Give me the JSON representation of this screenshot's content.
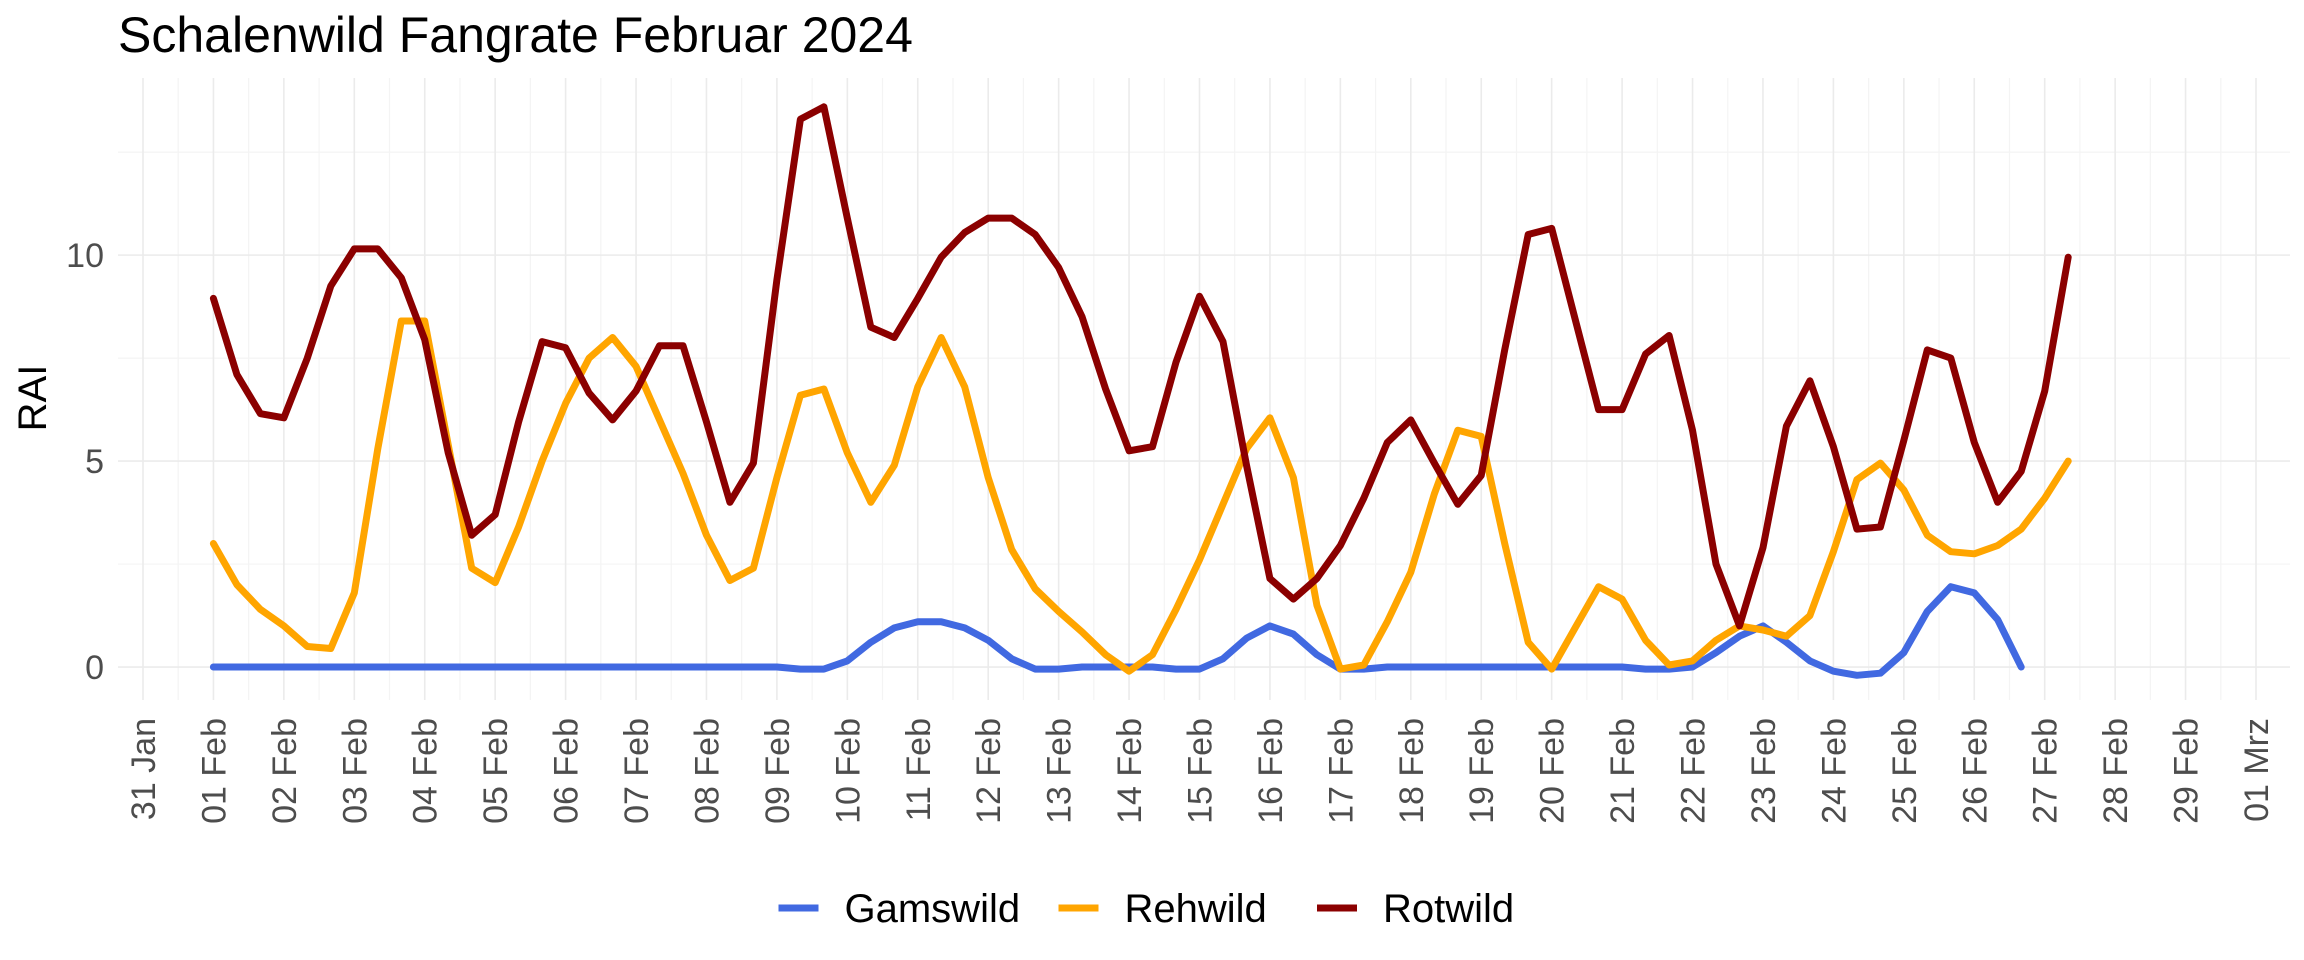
{
  "chart_data": {
    "type": "line",
    "title": "Schalenwild Fangrate Februar 2024",
    "xlabel": "",
    "ylabel": "RAI",
    "x_tick_labels": [
      "31 Jan",
      "01 Feb",
      "02 Feb",
      "03 Feb",
      "04 Feb",
      "05 Feb",
      "06 Feb",
      "07 Feb",
      "08 Feb",
      "09 Feb",
      "10 Feb",
      "11 Feb",
      "12 Feb",
      "13 Feb",
      "14 Feb",
      "15 Feb",
      "16 Feb",
      "17 Feb",
      "18 Feb",
      "19 Feb",
      "20 Feb",
      "21 Feb",
      "22 Feb",
      "23 Feb",
      "24 Feb",
      "25 Feb",
      "26 Feb",
      "27 Feb",
      "28 Feb",
      "29 Feb",
      "01 Mrz"
    ],
    "y_ticks": [
      0,
      5,
      10
    ],
    "y_tick_labels": [
      "0",
      "5",
      "10"
    ],
    "ylim": [
      -0.8,
      14.3
    ],
    "x_start": "2024-01-31",
    "x_step_days": 1,
    "x_points_per_day": 3,
    "legend_position": "bottom",
    "grid": true,
    "series": [
      {
        "name": "Gamswild",
        "color": "#4169E1",
        "values": [
          0,
          0,
          0,
          0,
          0,
          0,
          0,
          0,
          0,
          0,
          0,
          0,
          0,
          0,
          0,
          0,
          0,
          0,
          0,
          0,
          0,
          0,
          0,
          0,
          0,
          -0.05,
          -0.05,
          0.15,
          0.6,
          0.95,
          1.1,
          1.1,
          0.95,
          0.65,
          0.2,
          -0.05,
          -0.05,
          0,
          0,
          0,
          0,
          -0.05,
          -0.05,
          0.2,
          0.7,
          1.0,
          0.8,
          0.3,
          -0.05,
          -0.05,
          0,
          0,
          0,
          0,
          0,
          0,
          0,
          0,
          0,
          0,
          0,
          -0.05,
          -0.05,
          0,
          0.35,
          0.75,
          1.0,
          0.6,
          0.15,
          -0.1,
          -0.2,
          -0.15,
          0.35,
          1.35,
          1.95,
          1.8,
          1.15,
          0
        ]
      },
      {
        "name": "Rehwild",
        "color": "#FFA500",
        "values": [
          3.0,
          2.0,
          1.4,
          1.0,
          0.5,
          0.45,
          1.8,
          5.3,
          8.4,
          8.4,
          5.4,
          2.4,
          2.05,
          3.4,
          5.0,
          6.4,
          7.5,
          8.0,
          7.3,
          6.0,
          4.7,
          3.2,
          2.1,
          2.4,
          4.6,
          6.6,
          6.75,
          5.2,
          4.0,
          4.9,
          6.8,
          8.0,
          6.8,
          4.6,
          2.85,
          1.9,
          1.35,
          0.85,
          0.3,
          -0.1,
          0.3,
          1.4,
          2.6,
          3.95,
          5.3,
          6.05,
          4.6,
          1.5,
          -0.05,
          0.05,
          1.1,
          2.3,
          4.2,
          5.75,
          5.6,
          3.0,
          0.6,
          -0.05,
          0.95,
          1.95,
          1.65,
          0.65,
          0.05,
          0.15,
          0.65,
          1.0,
          0.9,
          0.75,
          1.25,
          2.8,
          4.55,
          4.95,
          4.3,
          3.2,
          2.8,
          2.75,
          2.95,
          3.35,
          4.1,
          5.0
        ]
      },
      {
        "name": "Rotwild",
        "color": "#8B0000",
        "values": [
          8.95,
          7.1,
          6.15,
          6.05,
          7.5,
          9.25,
          10.15,
          10.15,
          9.45,
          7.95,
          5.2,
          3.2,
          3.7,
          5.95,
          7.9,
          7.75,
          6.65,
          6.0,
          6.7,
          7.8,
          7.8,
          5.95,
          4.0,
          4.95,
          9.4,
          13.3,
          13.6,
          10.9,
          8.25,
          8.0,
          8.95,
          9.95,
          10.55,
          10.9,
          10.9,
          10.5,
          9.7,
          8.5,
          6.75,
          5.25,
          5.35,
          7.4,
          9.0,
          7.9,
          4.9,
          2.15,
          1.65,
          2.15,
          2.95,
          4.1,
          5.45,
          6.0,
          4.95,
          3.95,
          4.65,
          7.7,
          10.5,
          10.65,
          8.45,
          6.25,
          6.25,
          7.6,
          8.05,
          5.75,
          2.5,
          1.0,
          2.9,
          5.85,
          6.95,
          5.35,
          3.35,
          3.4,
          5.5,
          7.7,
          7.5,
          5.45,
          4.0,
          4.75,
          6.7,
          9.95
        ]
      }
    ]
  }
}
